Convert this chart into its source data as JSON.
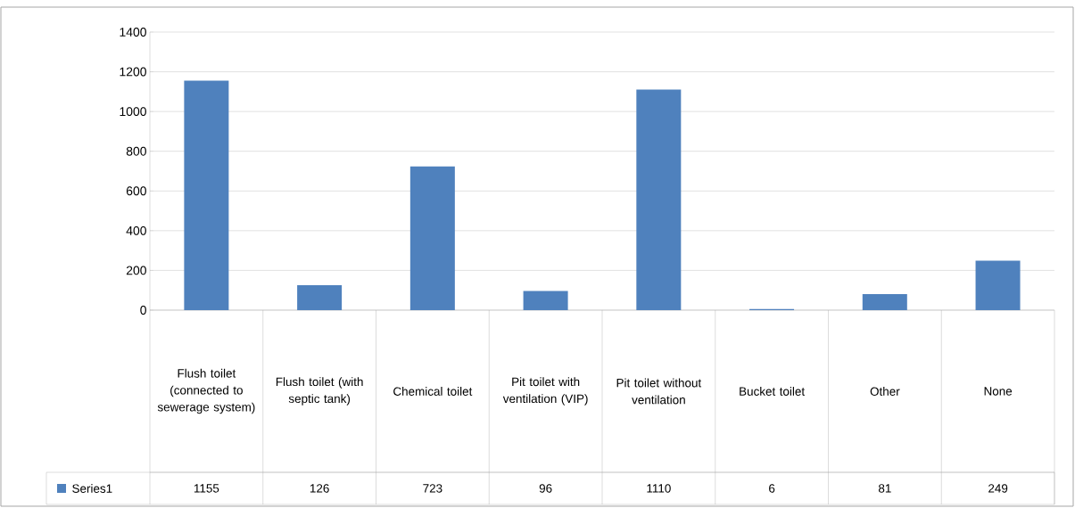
{
  "chart_data": {
    "type": "bar",
    "categories": [
      "Flush toilet (connected to sewerage system)",
      "Flush toilet (with septic tank)",
      "Chemical toilet",
      "Pit toilet with ventilation (VIP)",
      "Pit toilet without ventilation",
      "Bucket toilet",
      "Other",
      "None"
    ],
    "series": [
      {
        "name": "Series1",
        "color": "#4f81bd",
        "values": [
          1155,
          126,
          723,
          96,
          1110,
          6,
          81,
          249
        ]
      }
    ],
    "ylim": [
      0,
      1400
    ],
    "yticks": [
      0,
      200,
      400,
      600,
      800,
      1000,
      1200,
      1400
    ],
    "grid": "y",
    "legend": "bottom",
    "data_labels": true
  }
}
